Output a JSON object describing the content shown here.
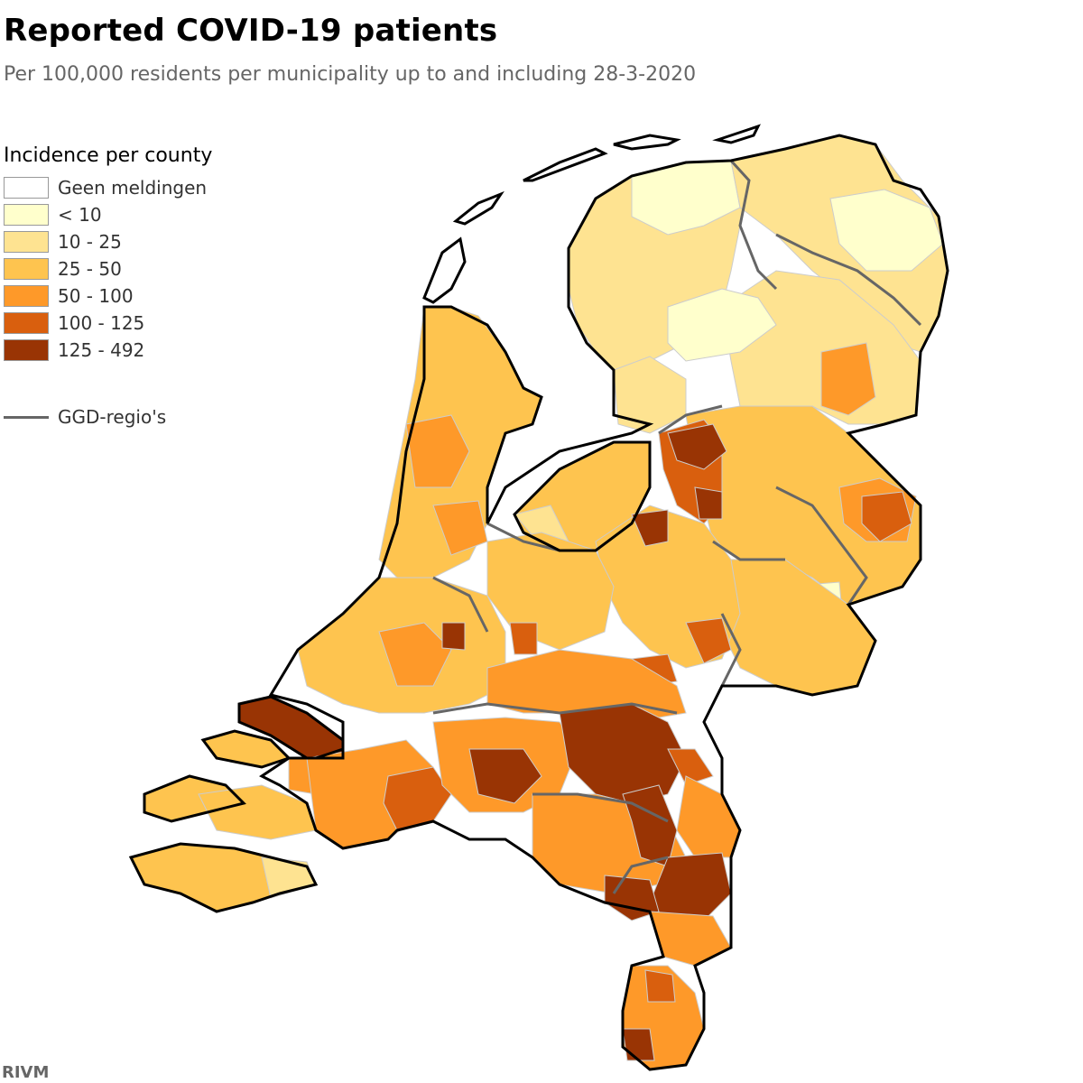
{
  "title": "Reported COVID-19 patients",
  "subtitle": "Per 100,000 residents per municipality up to and including 28-3-2020",
  "legend": {
    "title": "Incidence per county",
    "items": [
      {
        "label": "Geen meldingen",
        "color": "#ffffff"
      },
      {
        "label": "< 10",
        "color": "#ffffcc"
      },
      {
        "label": "10 - 25",
        "color": "#fee391"
      },
      {
        "label": "25 - 50",
        "color": "#fec44f"
      },
      {
        "label": "50 - 100",
        "color": "#fe9929"
      },
      {
        "label": "100 - 125",
        "color": "#d95f0e"
      },
      {
        "label": "125 - 492",
        "color": "#993404"
      }
    ],
    "line_label": "GGD-regio's"
  },
  "source": "RIVM",
  "colors": {
    "outline": "#000000",
    "ggd_border": "#666666",
    "municipality_border": "#cccccc"
  }
}
